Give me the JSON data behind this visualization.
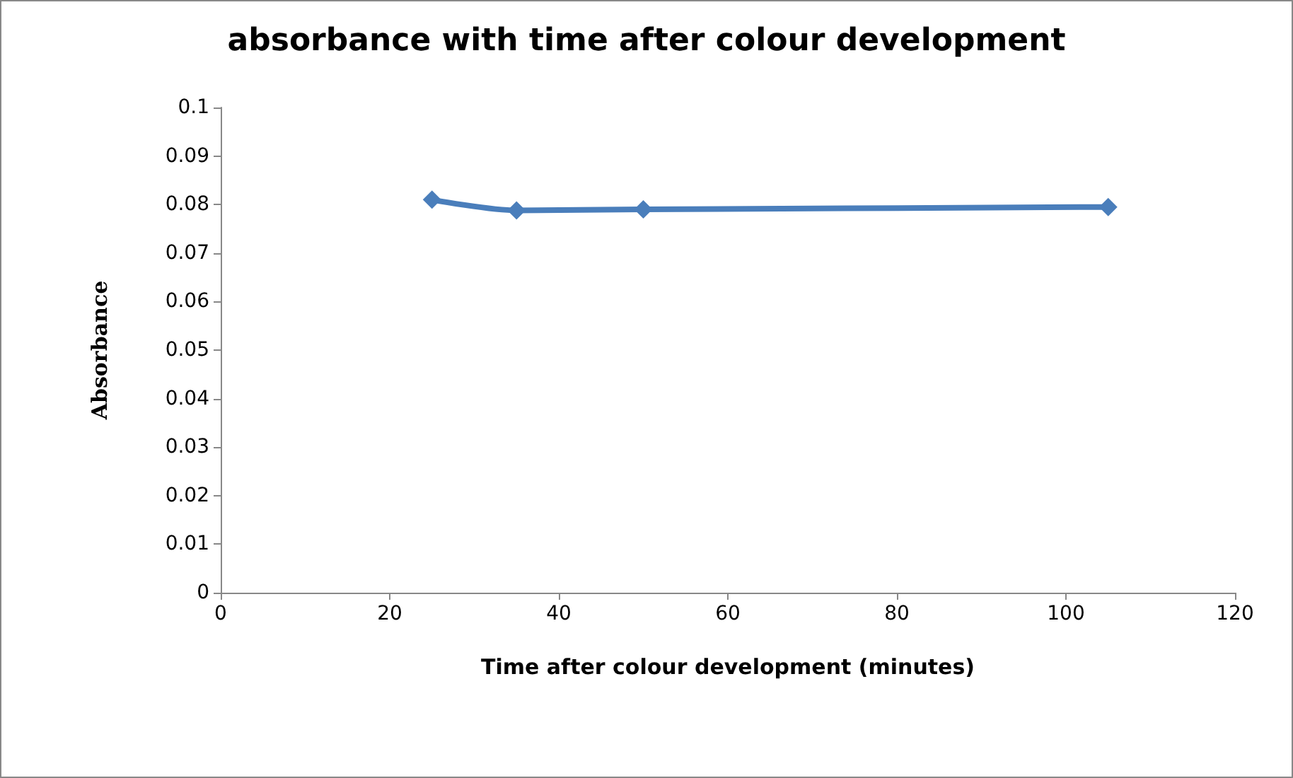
{
  "chart_data": {
    "type": "line",
    "title": "absorbance with time after colour development",
    "xlabel": "Time after colour development (minutes)",
    "ylabel": "Absorbance",
    "x": [
      25,
      35,
      50,
      105
    ],
    "series": [
      {
        "color": "#4a7ebb",
        "values": [
          0.081,
          0.0788,
          0.079,
          0.0795
        ]
      }
    ],
    "xlim": [
      0,
      120
    ],
    "xticks": [
      0,
      20,
      40,
      60,
      80,
      100,
      120
    ],
    "ylim": [
      0,
      0.1
    ],
    "yticks": [
      0,
      0.01,
      0.02,
      0.03,
      0.04,
      0.05,
      0.06,
      0.07,
      0.08,
      0.09,
      0.1
    ],
    "grid": false,
    "marker": "diamond",
    "line_style": "solid"
  }
}
